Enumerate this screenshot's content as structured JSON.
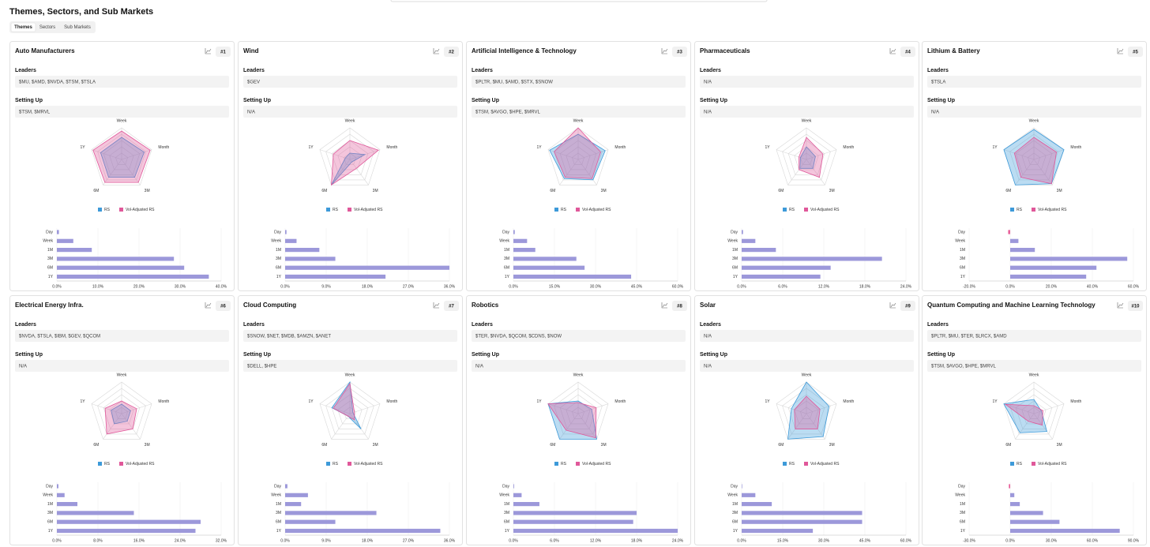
{
  "header": {
    "title": "Themes, Sectors, and Sub Markets",
    "tabs": [
      "Themes",
      "Sectors",
      "Sub Markets"
    ]
  },
  "labels": {
    "leaders": "Leaders",
    "setting_up": "Setting Up"
  },
  "cards": [
    {
      "title": "Auto Manufacturers",
      "rank": "#1",
      "leaders": "$MU, $AMD, $NVDA, $TSM, $TSLA",
      "setting_up": "$TSM, $MRVL",
      "radar": {
        "type": "radar",
        "axes": [
          "Week",
          "Month",
          "3M",
          "6M",
          "1Y"
        ],
        "rlim": [
          0,
          100
        ],
        "series": [
          {
            "name": "RS",
            "color": "#3d9ad9",
            "values": [
              70,
              75,
              70,
              70,
              70
            ]
          },
          {
            "name": "Vol-Adjusted RS",
            "color": "#e0589a",
            "values": [
              90,
              95,
              90,
              90,
              95
            ]
          }
        ]
      },
      "bars": {
        "type": "bar",
        "categories": [
          "Day",
          "Week",
          "1M",
          "3M",
          "6M",
          "1Y"
        ],
        "values": [
          0.5,
          4,
          8.5,
          28.5,
          31,
          37
        ],
        "color": "#9c98da",
        "negative_color": "#e8629b",
        "xlim": [
          0,
          40
        ],
        "xticks": [
          {
            "value": 0,
            "label": "0.0%"
          },
          {
            "value": 10,
            "label": "10.0%"
          },
          {
            "value": 20,
            "label": "20.0%"
          },
          {
            "value": 30,
            "label": "30.0%"
          },
          {
            "value": 40,
            "label": "40.0%"
          }
        ]
      }
    },
    {
      "title": "Wind",
      "rank": "#2",
      "leaders": "$GEV",
      "setting_up": "N/A",
      "radar": {
        "type": "radar",
        "axes": [
          "Week",
          "Month",
          "3M",
          "6M",
          "1Y"
        ],
        "rlim": [
          0,
          100
        ],
        "series": [
          {
            "name": "RS",
            "color": "#3d9ad9",
            "values": [
              20,
              50,
              10,
              100,
              15
            ]
          },
          {
            "name": "Vol-Adjusted RS",
            "color": "#e0589a",
            "values": [
              60,
              95,
              35,
              100,
              55
            ]
          }
        ]
      },
      "bars": {
        "type": "bar",
        "categories": [
          "Day",
          "Week",
          "1M",
          "3M",
          "6M",
          "1Y"
        ],
        "values": [
          0.3,
          2.5,
          7.5,
          11,
          36,
          22
        ],
        "color": "#9c98da",
        "negative_color": "#e8629b",
        "xlim": [
          0,
          36
        ],
        "xticks": [
          {
            "value": 0,
            "label": "0.0%"
          },
          {
            "value": 9,
            "label": "9.0%"
          },
          {
            "value": 18,
            "label": "18.0%"
          },
          {
            "value": 27,
            "label": "27.0%"
          },
          {
            "value": 36,
            "label": "36.0%"
          }
        ]
      }
    },
    {
      "title": "Artificial Intelligence & Technology",
      "rank": "#3",
      "leaders": "$PLTR, $MU, $AMD, $STX, $SNOW",
      "setting_up": "$TSM, $AVGO, $HPE, $MRVL",
      "radar": {
        "type": "radar",
        "axes": [
          "Week",
          "Month",
          "3M",
          "6M",
          "1Y"
        ],
        "rlim": [
          0,
          100
        ],
        "series": [
          {
            "name": "RS",
            "color": "#3d9ad9",
            "values": [
              80,
              90,
              80,
              75,
              95
            ]
          },
          {
            "name": "Vol-Adjusted RS",
            "color": "#e0589a",
            "values": [
              100,
              75,
              75,
              70,
              80
            ]
          }
        ]
      },
      "bars": {
        "type": "bar",
        "categories": [
          "Day",
          "Week",
          "1M",
          "3M",
          "6M",
          "1Y"
        ],
        "values": [
          0.5,
          5,
          8,
          23,
          26,
          43
        ],
        "color": "#9c98da",
        "negative_color": "#e8629b",
        "xlim": [
          0,
          60
        ],
        "xticks": [
          {
            "value": 0,
            "label": "0.0%"
          },
          {
            "value": 15,
            "label": "15.0%"
          },
          {
            "value": 30,
            "label": "30.0%"
          },
          {
            "value": 45,
            "label": "45.0%"
          },
          {
            "value": 60,
            "label": "60.0%"
          }
        ]
      }
    },
    {
      "title": "Pharmaceuticals",
      "rank": "#4",
      "leaders": "N/A",
      "setting_up": "N/A",
      "radar": {
        "type": "radar",
        "axes": [
          "Week",
          "Month",
          "3M",
          "6M",
          "1Y"
        ],
        "rlim": [
          0,
          100
        ],
        "series": [
          {
            "name": "RS",
            "color": "#3d9ad9",
            "values": [
              40,
              30,
              35,
              35,
              20
            ]
          },
          {
            "name": "Vol-Adjusted RS",
            "color": "#e0589a",
            "values": [
              70,
              55,
              70,
              40,
              25
            ]
          }
        ]
      },
      "bars": {
        "type": "bar",
        "categories": [
          "Day",
          "Week",
          "1M",
          "3M",
          "6M",
          "1Y"
        ],
        "values": [
          0.2,
          2,
          5,
          20.5,
          13,
          11.5
        ],
        "color": "#9c98da",
        "negative_color": "#e8629b",
        "xlim": [
          0,
          24
        ],
        "xticks": [
          {
            "value": 0,
            "label": "0.0%"
          },
          {
            "value": 6,
            "label": "6.0%"
          },
          {
            "value": 12,
            "label": "12.0%"
          },
          {
            "value": 18,
            "label": "18.0%"
          },
          {
            "value": 24,
            "label": "24.0%"
          }
        ]
      }
    },
    {
      "title": "Lithium & Battery",
      "rank": "#5",
      "leaders": "$TSLA",
      "setting_up": "N/A",
      "radar": {
        "type": "radar",
        "axes": [
          "Week",
          "Month",
          "3M",
          "6M",
          "1Y"
        ],
        "rlim": [
          0,
          100
        ],
        "series": [
          {
            "name": "RS",
            "color": "#3d9ad9",
            "values": [
              95,
              100,
              95,
              100,
              100
            ]
          },
          {
            "name": "Vol-Adjusted RS",
            "color": "#e0589a",
            "values": [
              70,
              75,
              95,
              70,
              65
            ]
          }
        ]
      },
      "bars": {
        "type": "bar",
        "categories": [
          "Day",
          "Week",
          "1M",
          "3M",
          "6M",
          "1Y"
        ],
        "values": [
          -1,
          4,
          12,
          57,
          42,
          37
        ],
        "color": "#9c98da",
        "negative_color": "#e8629b",
        "xlim": [
          -20,
          60
        ],
        "xticks": [
          {
            "value": -20,
            "label": "-20.0%"
          },
          {
            "value": 0,
            "label": "0.0%"
          },
          {
            "value": 20,
            "label": "20.0%"
          },
          {
            "value": 40,
            "label": "40.0%"
          },
          {
            "value": 60,
            "label": "60.0%"
          }
        ]
      }
    },
    {
      "title": "Electrical Energy Infra.",
      "rank": "#6",
      "leaders": "$NVDA, $TSLA, $IBM, $GEV, $QCOM",
      "setting_up": "N/A",
      "radar": {
        "type": "radar",
        "axes": [
          "Week",
          "Month",
          "3M",
          "6M",
          "1Y"
        ],
        "rlim": [
          0,
          100
        ],
        "series": [
          {
            "name": "RS",
            "color": "#3d9ad9",
            "values": [
              30,
              30,
              30,
              40,
              35
            ]
          },
          {
            "name": "Vol-Adjusted RS",
            "color": "#e0589a",
            "values": [
              40,
              50,
              60,
              80,
              55
            ]
          }
        ]
      },
      "bars": {
        "type": "bar",
        "categories": [
          "Day",
          "Week",
          "1M",
          "3M",
          "6M",
          "1Y"
        ],
        "values": [
          0.3,
          1.5,
          4,
          15,
          28,
          27
        ],
        "color": "#9c98da",
        "negative_color": "#e8629b",
        "xlim": [
          0,
          32
        ],
        "xticks": [
          {
            "value": 0,
            "label": "0.0%"
          },
          {
            "value": 8,
            "label": "8.0%"
          },
          {
            "value": 16,
            "label": "16.0%"
          },
          {
            "value": 24,
            "label": "24.0%"
          },
          {
            "value": 32,
            "label": "32.0%"
          }
        ]
      }
    },
    {
      "title": "Cloud Computing",
      "rank": "#7",
      "leaders": "$SNOW, $NET, $MDB, $AMZN, $ANET",
      "setting_up": "$DELL, $HPE",
      "radar": {
        "type": "radar",
        "axes": [
          "Week",
          "Month",
          "3M",
          "6M",
          "1Y"
        ],
        "rlim": [
          0,
          100
        ],
        "series": [
          {
            "name": "RS",
            "color": "#3d9ad9",
            "values": [
              100,
              10,
              60,
              10,
              60
            ]
          },
          {
            "name": "Vol-Adjusted RS",
            "color": "#e0589a",
            "values": [
              95,
              15,
              25,
              10,
              55
            ]
          }
        ]
      },
      "bars": {
        "type": "bar",
        "categories": [
          "Day",
          "Week",
          "1M",
          "3M",
          "6M",
          "1Y"
        ],
        "values": [
          0.5,
          5,
          3.5,
          20,
          11,
          34
        ],
        "color": "#9c98da",
        "negative_color": "#e8629b",
        "xlim": [
          0,
          36
        ],
        "xticks": [
          {
            "value": 0,
            "label": "0.0%"
          },
          {
            "value": 9,
            "label": "9.0%"
          },
          {
            "value": 18,
            "label": "18.0%"
          },
          {
            "value": 27,
            "label": "27.0%"
          },
          {
            "value": 36,
            "label": "36.0%"
          }
        ]
      }
    },
    {
      "title": "Robotics",
      "rank": "#8",
      "leaders": "$TER, $NVDA, $QCOM, $CDNS, $NOW",
      "setting_up": "N/A",
      "radar": {
        "type": "radar",
        "axes": [
          "Week",
          "Month",
          "3M",
          "6M",
          "1Y"
        ],
        "rlim": [
          0,
          100
        ],
        "series": [
          {
            "name": "RS",
            "color": "#3d9ad9",
            "values": [
              40,
              45,
              100,
              100,
              100
            ]
          },
          {
            "name": "Vol-Adjusted RS",
            "color": "#e0589a",
            "values": [
              35,
              60,
              95,
              65,
              100
            ]
          }
        ]
      },
      "bars": {
        "type": "bar",
        "categories": [
          "Day",
          "Week",
          "1M",
          "3M",
          "6M",
          "1Y"
        ],
        "values": [
          0.1,
          1.2,
          3.8,
          18,
          17.5,
          24
        ],
        "color": "#9c98da",
        "negative_color": "#e8629b",
        "xlim": [
          0,
          24
        ],
        "xticks": [
          {
            "value": 0,
            "label": "0.0%"
          },
          {
            "value": 6,
            "label": "6.0%"
          },
          {
            "value": 12,
            "label": "12.0%"
          },
          {
            "value": 18,
            "label": "18.0%"
          },
          {
            "value": 24,
            "label": "24.0%"
          }
        ]
      }
    },
    {
      "title": "Solar",
      "rank": "#9",
      "leaders": "N/A",
      "setting_up": "N/A",
      "radar": {
        "type": "radar",
        "axes": [
          "Week",
          "Month",
          "3M",
          "6M",
          "1Y"
        ],
        "rlim": [
          0,
          100
        ],
        "series": [
          {
            "name": "RS",
            "color": "#3d9ad9",
            "values": [
              100,
              75,
              90,
              100,
              50
            ]
          },
          {
            "name": "Vol-Adjusted RS",
            "color": "#e0589a",
            "values": [
              55,
              45,
              60,
              60,
              40
            ]
          }
        ]
      },
      "bars": {
        "type": "bar",
        "categories": [
          "Day",
          "Week",
          "1M",
          "3M",
          "6M",
          "1Y"
        ],
        "values": [
          0.2,
          5,
          11,
          44,
          44,
          26
        ],
        "color": "#9c98da",
        "negative_color": "#e8629b",
        "xlim": [
          0,
          60
        ],
        "xticks": [
          {
            "value": 0,
            "label": "0.0%"
          },
          {
            "value": 15,
            "label": "15.0%"
          },
          {
            "value": 30,
            "label": "30.0%"
          },
          {
            "value": 45,
            "label": "45.0%"
          },
          {
            "value": 60,
            "label": "60.0%"
          }
        ]
      }
    },
    {
      "title": "Quantum Computing and Machine Learning Technology",
      "rank": "#10",
      "leaders": "$PLTR, $MU, $TER, $LRCX, $AMD",
      "setting_up": "$TSM, $AVGO, $HPE, $MRVL",
      "radar": {
        "type": "radar",
        "axes": [
          "Week",
          "Month",
          "3M",
          "6M",
          "1Y"
        ],
        "rlim": [
          0,
          100
        ],
        "series": [
          {
            "name": "RS",
            "color": "#3d9ad9",
            "values": [
              45,
              25,
              70,
              75,
              100
            ]
          },
          {
            "name": "Vol-Adjusted RS",
            "color": "#e0589a",
            "values": [
              25,
              30,
              45,
              30,
              95
            ]
          }
        ]
      },
      "bars": {
        "type": "bar",
        "categories": [
          "Day",
          "Week",
          "1M",
          "3M",
          "6M",
          "1Y"
        ],
        "values": [
          -1,
          3,
          7,
          24,
          36,
          80
        ],
        "color": "#9c98da",
        "negative_color": "#e8629b",
        "xlim": [
          -30,
          90
        ],
        "xticks": [
          {
            "value": -30,
            "label": "-30.0%"
          },
          {
            "value": 0,
            "label": "0.0%"
          },
          {
            "value": 30,
            "label": "30.0%"
          },
          {
            "value": 60,
            "label": "60.0%"
          },
          {
            "value": 90,
            "label": "90.0%"
          }
        ]
      }
    }
  ]
}
